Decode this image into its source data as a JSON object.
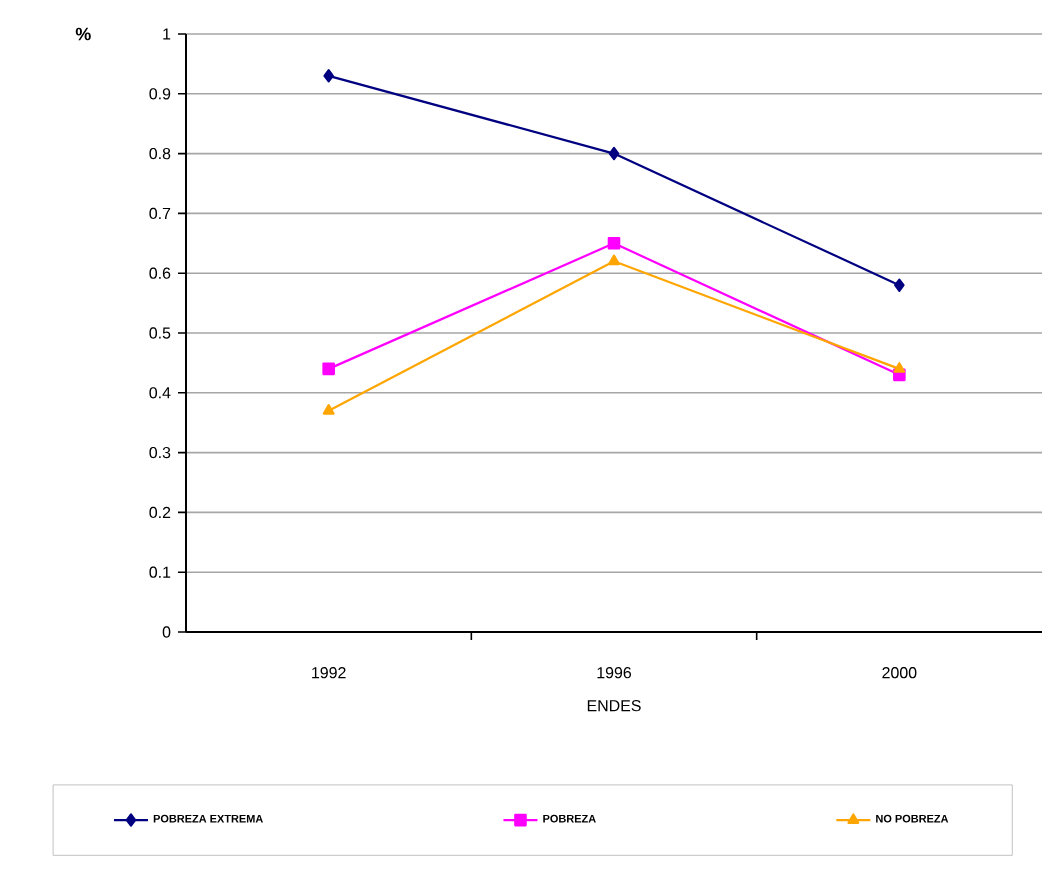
{
  "chart_data": {
    "type": "line",
    "xlabel": "ENDES",
    "ylabel": "%",
    "categories": [
      "1992",
      "1996",
      "2000"
    ],
    "series": [
      {
        "name": "POBREZA EXTREMA",
        "color": "#000080",
        "marker": "diamond",
        "values": [
          0.93,
          0.8,
          0.58
        ]
      },
      {
        "name": "POBREZA",
        "color": "#ff00ff",
        "marker": "square",
        "values": [
          0.44,
          0.65,
          0.43
        ]
      },
      {
        "name": "NO POBREZA",
        "color": "#ffa500",
        "marker": "triangle",
        "values": [
          0.37,
          0.62,
          0.44
        ]
      }
    ],
    "ylim": [
      0,
      1
    ],
    "yticks": [
      0,
      0.1,
      0.2,
      0.3,
      0.4,
      0.5,
      0.6,
      0.7,
      0.8,
      0.9,
      1
    ],
    "grid": "y",
    "legend": "bottom"
  }
}
